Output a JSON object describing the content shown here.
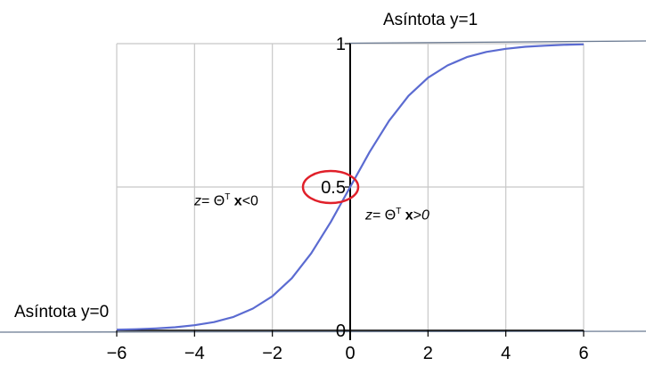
{
  "chart_data": {
    "type": "line",
    "x": [
      -6,
      -5.5,
      -5,
      -4.5,
      -4,
      -3.5,
      -3,
      -2.5,
      -2,
      -1.5,
      -1,
      -0.5,
      0,
      0.5,
      1,
      1.5,
      2,
      2.5,
      3,
      3.5,
      4,
      4.5,
      5,
      5.5,
      6
    ],
    "series": [
      {
        "values": [
          0.0025,
          0.0041,
          0.0067,
          0.011,
          0.018,
          0.029,
          0.047,
          0.076,
          0.119,
          0.182,
          0.269,
          0.378,
          0.5,
          0.622,
          0.731,
          0.818,
          0.881,
          0.924,
          0.953,
          0.971,
          0.982,
          0.989,
          0.993,
          0.996,
          0.9975
        ],
        "color": "#5b6bd1"
      }
    ],
    "xlim": [
      -6,
      6
    ],
    "ylim": [
      0,
      1
    ],
    "xticks": [
      "−6",
      "−4",
      "−2",
      "0",
      "2",
      "4",
      "6"
    ],
    "yticks": [
      "0",
      "0.5",
      "1"
    ],
    "grid": true,
    "highlight": {
      "x": 0,
      "y": 0.5,
      "shape": "circle",
      "color": "#e0202a"
    },
    "annotations": {
      "asymptote_top": "Asíntota  y=1",
      "asymptote_bottom": "Asíntota  y=0",
      "left_z": "z",
      "left_eq": "= Θ",
      "left_T": "T",
      "left_x": "x",
      "left_cmp": "<0",
      "right_z": "z",
      "right_eq": "= Θ",
      "right_T": "T",
      "right_x": "x",
      "right_cmp_sym": ">",
      "right_cmp_num": "0"
    }
  }
}
